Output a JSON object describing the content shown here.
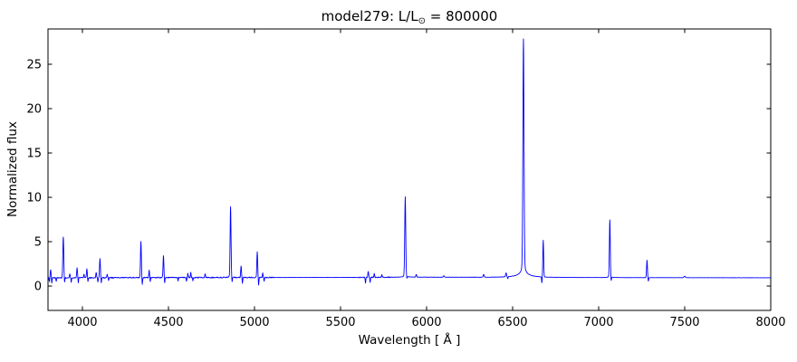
{
  "figure": {
    "title": {
      "prefix": "model279: L/L",
      "sun_symbol": "⊙",
      "suffix": " = 800000",
      "full": "model279: L/L⊙ = 800000"
    },
    "xlabel": "Wavelength [ Å ]",
    "ylabel": "Normalized flux"
  },
  "chart_data": {
    "type": "line",
    "title": "model279: L/L⊙ = 800000",
    "xlabel": "Wavelength [ Å ]",
    "ylabel": "Normalized flux",
    "xlim": [
      3800,
      8000
    ],
    "ylim": [
      -2.75,
      28.98
    ],
    "x_ticks": [
      4000,
      4500,
      5000,
      5500,
      6000,
      6500,
      7000,
      7500,
      8000
    ],
    "y_ticks": [
      0,
      5,
      10,
      15,
      20,
      25
    ],
    "grid": false,
    "legend": false,
    "line_color": "#0000ff",
    "background": "#ffffff",
    "description": "Emission-line spectrum: continuum normalized to ~1 with narrow emission peaks; flux values below are peak (emission) or minimum (absorption) normalized flux read from the plot",
    "continuum": [
      [
        3800,
        0.92
      ],
      [
        4300,
        0.95
      ],
      [
        5000,
        0.96
      ],
      [
        5600,
        0.97
      ],
      [
        5900,
        1.0
      ],
      [
        6500,
        0.97
      ],
      [
        7000,
        0.95
      ],
      [
        8000,
        0.93
      ]
    ],
    "features": [
      {
        "wavelength": 3808,
        "flux": 0.5,
        "sigma": 1.6,
        "type": "absorption"
      },
      {
        "wavelength": 3815,
        "flux": 1.85,
        "sigma": 2.2,
        "type": "emission"
      },
      {
        "wavelength": 3822,
        "flux": 0.35,
        "sigma": 1.6,
        "type": "absorption"
      },
      {
        "wavelength": 3848,
        "flux": 0.55,
        "sigma": 1.6,
        "type": "absorption"
      },
      {
        "wavelength": 3889,
        "flux": 5.5,
        "sigma": 2.8,
        "type": "emission"
      },
      {
        "wavelength": 3896,
        "flux": 0.3,
        "sigma": 1.8,
        "type": "absorption"
      },
      {
        "wavelength": 3927,
        "flux": 1.4,
        "sigma": 2.0,
        "type": "emission"
      },
      {
        "wavelength": 3935,
        "flux": 0.45,
        "sigma": 1.6,
        "type": "absorption"
      },
      {
        "wavelength": 3969,
        "flux": 2.0,
        "sigma": 2.3,
        "type": "emission"
      },
      {
        "wavelength": 3976,
        "flux": 0.4,
        "sigma": 1.6,
        "type": "absorption"
      },
      {
        "wavelength": 4009,
        "flux": 1.35,
        "sigma": 2.0,
        "type": "emission"
      },
      {
        "wavelength": 4026,
        "flux": 1.9,
        "sigma": 2.3,
        "type": "emission"
      },
      {
        "wavelength": 4032,
        "flux": 0.5,
        "sigma": 1.6,
        "type": "absorption"
      },
      {
        "wavelength": 4080,
        "flux": 1.55,
        "sigma": 2.0,
        "type": "emission"
      },
      {
        "wavelength": 4090,
        "flux": 0.45,
        "sigma": 1.6,
        "type": "absorption"
      },
      {
        "wavelength": 4102,
        "flux": 3.1,
        "sigma": 2.4,
        "type": "emission"
      },
      {
        "wavelength": 4110,
        "flux": 0.4,
        "sigma": 1.6,
        "type": "absorption"
      },
      {
        "wavelength": 4144,
        "flux": 1.3,
        "sigma": 2.0,
        "type": "emission"
      },
      {
        "wavelength": 4152,
        "flux": 0.6,
        "sigma": 1.6,
        "type": "absorption"
      },
      {
        "wavelength": 4340,
        "flux": 5.0,
        "sigma": 2.5,
        "type": "emission"
      },
      {
        "wavelength": 4348,
        "flux": 0.2,
        "sigma": 1.8,
        "type": "absorption"
      },
      {
        "wavelength": 4388,
        "flux": 1.75,
        "sigma": 2.0,
        "type": "emission"
      },
      {
        "wavelength": 4394,
        "flux": 0.5,
        "sigma": 1.6,
        "type": "absorption"
      },
      {
        "wavelength": 4471,
        "flux": 3.4,
        "sigma": 2.4,
        "type": "emission"
      },
      {
        "wavelength": 4478,
        "flux": 0.35,
        "sigma": 1.7,
        "type": "absorption"
      },
      {
        "wavelength": 4556,
        "flux": 0.6,
        "sigma": 1.6,
        "type": "absorption"
      },
      {
        "wavelength": 4605,
        "flux": 0.55,
        "sigma": 1.6,
        "type": "absorption"
      },
      {
        "wavelength": 4613,
        "flux": 1.4,
        "sigma": 1.8,
        "type": "emission"
      },
      {
        "wavelength": 4630,
        "flux": 1.5,
        "sigma": 1.8,
        "type": "emission"
      },
      {
        "wavelength": 4642,
        "flux": 0.6,
        "sigma": 1.6,
        "type": "absorption"
      },
      {
        "wavelength": 4713,
        "flux": 1.4,
        "sigma": 2.0,
        "type": "emission"
      },
      {
        "wavelength": 4861,
        "flux": 8.7,
        "sigma": 2.6,
        "type": "emission"
      },
      {
        "wavelength": 4870,
        "flux": 0.4,
        "sigma": 1.7,
        "type": "absorption"
      },
      {
        "wavelength": 4922,
        "flux": 2.25,
        "sigma": 2.2,
        "type": "emission"
      },
      {
        "wavelength": 4930,
        "flux": 0.3,
        "sigma": 1.6,
        "type": "absorption"
      },
      {
        "wavelength": 5016,
        "flux": 3.85,
        "sigma": 2.4,
        "type": "emission"
      },
      {
        "wavelength": 5024,
        "flux": 0.15,
        "sigma": 1.7,
        "type": "absorption"
      },
      {
        "wavelength": 5048,
        "flux": 1.45,
        "sigma": 2.0,
        "type": "emission"
      },
      {
        "wavelength": 5056,
        "flux": 0.55,
        "sigma": 1.6,
        "type": "absorption"
      },
      {
        "wavelength": 5645,
        "flux": 0.35,
        "sigma": 1.8,
        "type": "absorption"
      },
      {
        "wavelength": 5661,
        "flux": 1.65,
        "sigma": 2.2,
        "type": "emission"
      },
      {
        "wavelength": 5672,
        "flux": 0.4,
        "sigma": 1.6,
        "type": "absorption"
      },
      {
        "wavelength": 5696,
        "flux": 1.4,
        "sigma": 2.0,
        "type": "emission"
      },
      {
        "wavelength": 5740,
        "flux": 1.25,
        "sigma": 2.2,
        "type": "emission"
      },
      {
        "wavelength": 5876,
        "flux": 9.75,
        "sigma": 2.8,
        "type": "emission"
      },
      {
        "wavelength": 5886,
        "flux": 0.75,
        "sigma": 1.8,
        "type": "absorption"
      },
      {
        "wavelength": 5940,
        "flux": 1.3,
        "sigma": 2.4,
        "type": "emission"
      },
      {
        "wavelength": 6100,
        "flux": 1.15,
        "sigma": 3.0,
        "type": "emission"
      },
      {
        "wavelength": 6332,
        "flux": 1.3,
        "sigma": 2.8,
        "type": "emission"
      },
      {
        "wavelength": 6462,
        "flux": 1.4,
        "sigma": 2.6,
        "type": "emission"
      },
      {
        "wavelength": 6472,
        "flux": 0.75,
        "sigma": 1.8,
        "type": "absorption"
      },
      {
        "wavelength": 6563,
        "flux": 26.3,
        "sigma": 3.2,
        "type": "emission"
      },
      {
        "wavelength": 6670,
        "flux": 0.3,
        "sigma": 1.6,
        "type": "absorption"
      },
      {
        "wavelength": 6678,
        "flux": 5.1,
        "sigma": 2.4,
        "type": "emission"
      },
      {
        "wavelength": 7065,
        "flux": 7.25,
        "sigma": 2.5,
        "type": "emission"
      },
      {
        "wavelength": 7073,
        "flux": 0.5,
        "sigma": 1.7,
        "type": "absorption"
      },
      {
        "wavelength": 7281,
        "flux": 2.9,
        "sigma": 2.4,
        "type": "emission"
      },
      {
        "wavelength": 7289,
        "flux": 0.55,
        "sigma": 1.7,
        "type": "absorption"
      },
      {
        "wavelength": 7500,
        "flux": 1.1,
        "sigma": 4.0,
        "type": "emission"
      }
    ],
    "broad_components": [
      {
        "wavelength": 6563,
        "amp": 1.3,
        "gamma": 12
      },
      {
        "wavelength": 6563,
        "amp": 0.25,
        "gamma": 55
      },
      {
        "wavelength": 5876,
        "amp": 0.3,
        "gamma": 8
      },
      {
        "wavelength": 4861,
        "amp": 0.2,
        "gamma": 8
      },
      {
        "wavelength": 7065,
        "amp": 0.2,
        "gamma": 8
      }
    ],
    "noise": {
      "seed": 279,
      "segments": [
        [
          3800,
          5120,
          0.055
        ],
        [
          5120,
          5600,
          0.012
        ],
        [
          5600,
          5800,
          0.045
        ],
        [
          5800,
          6540,
          0.018
        ],
        [
          6540,
          6800,
          0.012
        ],
        [
          6800,
          8000,
          0.008
        ]
      ]
    }
  }
}
